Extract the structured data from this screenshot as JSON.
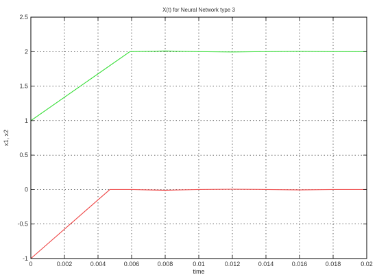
{
  "chart_data": {
    "type": "line",
    "title": "X(t) for Neural Network type 3",
    "xlabel": "time",
    "ylabel": "x1, x2",
    "xlim": [
      0,
      0.02
    ],
    "ylim": [
      -1,
      2.5
    ],
    "x_ticks": [
      0,
      0.002,
      0.004,
      0.006,
      0.008,
      0.01,
      0.012,
      0.014,
      0.016,
      0.018,
      0.02
    ],
    "x_tick_labels": [
      "0",
      "0.002",
      "0.004",
      "0.006",
      "0.008",
      "0.01",
      "0.012",
      "0.014",
      "0.016",
      "0.018",
      "0.02"
    ],
    "y_ticks": [
      -1,
      -0.5,
      0,
      0.5,
      1,
      1.5,
      2,
      2.5
    ],
    "y_tick_labels": [
      "-1",
      "-0.5",
      "0",
      "0.5",
      "1",
      "1.5",
      "2",
      "2.5"
    ],
    "grid": true,
    "series": [
      {
        "color": "#33dd33",
        "x": [
          0,
          0.0059,
          0.008,
          0.01,
          0.012,
          0.014,
          0.016,
          0.018,
          0.02
        ],
        "y": [
          1,
          2,
          2.01,
          2,
          1.995,
          2,
          2.005,
          2,
          2
        ]
      },
      {
        "color": "#ee4444",
        "x": [
          0,
          0.0047,
          0.006,
          0.008,
          0.01,
          0.012,
          0.014,
          0.016,
          0.018,
          0.02
        ],
        "y": [
          -1,
          0,
          0,
          -0.01,
          0,
          0.005,
          0,
          -0.005,
          0,
          0
        ]
      }
    ]
  }
}
